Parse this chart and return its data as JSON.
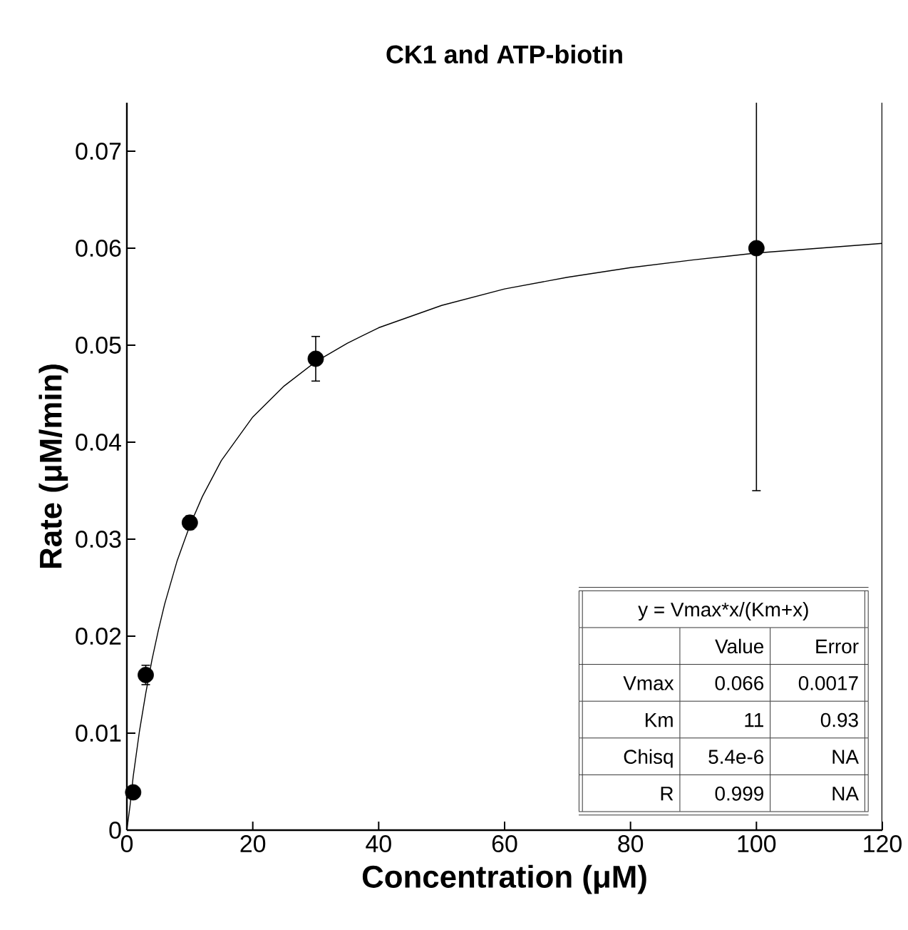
{
  "chart_data": {
    "type": "scatter",
    "title": "CK1 and ATP-biotin",
    "xlabel": "Concentration (μM)",
    "ylabel": "Rate (μM/min)",
    "xlim": [
      0,
      120
    ],
    "ylim": [
      0,
      0.075
    ],
    "xticks": [
      0,
      20,
      40,
      60,
      80,
      100,
      120
    ],
    "yticks": [
      0,
      0.01,
      0.02,
      0.03,
      0.04,
      0.05,
      0.06,
      0.07
    ],
    "grid": false,
    "series": [
      {
        "type": "scatter",
        "color": "#000000",
        "marker": "circle",
        "x": [
          1,
          3,
          10,
          30,
          100
        ],
        "values": [
          0.0039,
          0.016,
          0.0317,
          0.0486,
          0.06
        ],
        "errors": [
          0.0006,
          0.001,
          0.0007,
          0.0023,
          0.025
        ]
      },
      {
        "type": "line",
        "color": "#000000",
        "marker": "none",
        "x": [
          0,
          0.5,
          1,
          2,
          3,
          4,
          5,
          6,
          8,
          10,
          12,
          15,
          20,
          25,
          30,
          35,
          40,
          50,
          60,
          70,
          80,
          90,
          100,
          110,
          120
        ],
        "values": [
          0,
          0.0025,
          0.0055,
          0.0102,
          0.0141,
          0.0176,
          0.0206,
          0.0233,
          0.0278,
          0.0314,
          0.0344,
          0.0381,
          0.0426,
          0.0458,
          0.0483,
          0.0502,
          0.0518,
          0.0541,
          0.0558,
          0.057,
          0.058,
          0.0588,
          0.0595,
          0.06,
          0.0605
        ]
      }
    ],
    "annotations": [
      "y = Vmax*x/(Km+x)",
      "Value",
      "Error",
      "Vmax",
      "0.066",
      "0.0017",
      "Km",
      "11",
      "0.93",
      "Chisq",
      "5.4e-6",
      "NA",
      "R",
      "0.999",
      "NA"
    ]
  }
}
